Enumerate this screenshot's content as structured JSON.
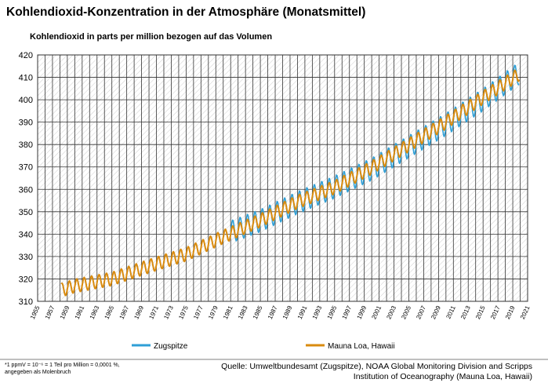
{
  "title": "Kohlendioxid-Konzentration in der Atmosphäre (Monatsmittel)",
  "subtitle": "Kohlendioxid in parts per million bezogen auf das Volumen",
  "footnote_line1": "*1 ppmV = 10⁻⁶ = 1 Teil pro Million = 0,0001 %,",
  "footnote_line2": "angegeben als Molenbruch",
  "source_line1": "Quelle: Umweltbundesamt (Zugspitze), NOAA Global Monitoring Division and Scripps",
  "source_line2": "Institution of Oceanography  (Mauna Loa, Hawaii)",
  "colors": {
    "zugspitze": "#2f9fd6",
    "mauna_loa": "#d98b0f",
    "grid": "#333333",
    "hatch": "#cfcfcf"
  },
  "chart_data": {
    "type": "line",
    "xlim": [
      1955,
      2021
    ],
    "ylim": [
      310,
      420
    ],
    "x_ticks": [
      1955,
      1957,
      1959,
      1961,
      1963,
      1965,
      1967,
      1969,
      1971,
      1973,
      1975,
      1977,
      1979,
      1981,
      1983,
      1985,
      1987,
      1989,
      1991,
      1993,
      1995,
      1997,
      1999,
      2001,
      2003,
      2005,
      2007,
      2009,
      2011,
      2013,
      2015,
      2017,
      2019,
      2021
    ],
    "x_tick_labels": [
      "1955",
      "1957",
      "1959",
      "1961",
      "1963",
      "1965",
      "1967",
      "1969",
      "1971",
      "1973",
      "1975",
      "1977",
      "1979",
      "1981",
      "1983",
      "1985",
      "1987",
      "1989",
      "1991",
      "1993",
      "1995",
      "1997",
      "1999",
      "2001",
      "2003",
      "2005",
      "2007",
      "2009",
      "2011",
      "2013",
      "2015",
      "2017",
      "2019",
      "2021"
    ],
    "y_ticks": [
      310,
      320,
      330,
      340,
      350,
      360,
      370,
      380,
      390,
      400,
      410,
      420
    ],
    "y_tick_labels": [
      "310",
      "320",
      "330",
      "340",
      "350",
      "360",
      "370",
      "380",
      "390",
      "400",
      "410",
      "420"
    ],
    "grid": true,
    "legend_position": "bottom",
    "series": [
      {
        "name": "Zugspitze",
        "color": "#2f9fd6",
        "seasonal_amplitude_ppm": 5,
        "x": [
          1981,
          1985,
          1990,
          1995,
          2000,
          2005,
          2010,
          2015,
          2019.9
        ],
        "y": [
          341,
          346,
          354,
          361,
          369,
          379,
          389,
          400,
          412
        ]
      },
      {
        "name": "Mauna Loa, Hawaii",
        "color": "#d98b0f",
        "seasonal_amplitude_ppm": 3,
        "x": [
          1958.2,
          1960,
          1965,
          1970,
          1975,
          1980,
          1985,
          1990,
          1995,
          2000,
          2005,
          2010,
          2015,
          2019.9
        ],
        "y": [
          315,
          316.9,
          320,
          325.7,
          331,
          338.8,
          346.1,
          354.4,
          360.9,
          369.7,
          379.8,
          389.9,
          401,
          411.5
        ]
      }
    ]
  }
}
